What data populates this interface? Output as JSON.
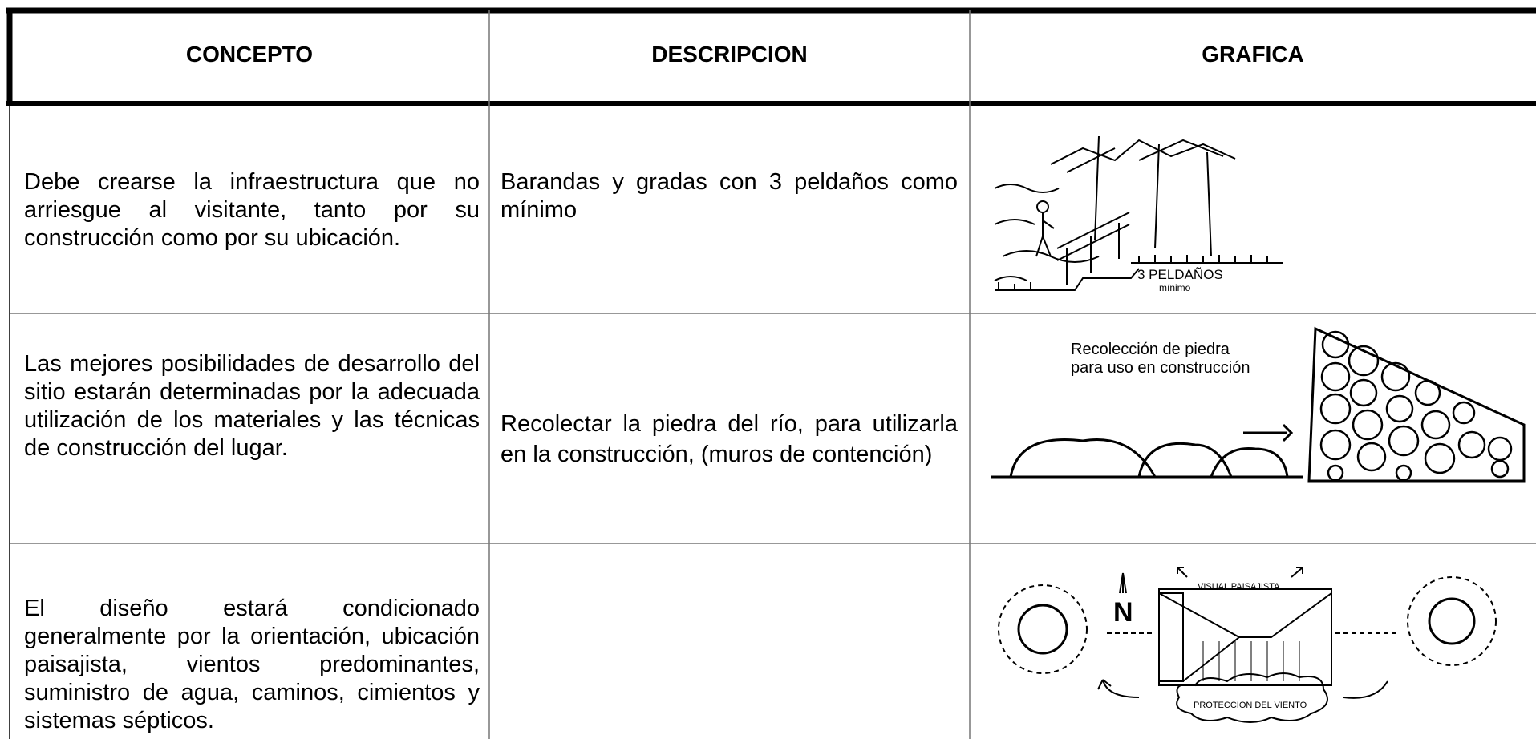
{
  "table": {
    "header": [
      "CONCEPTO",
      "DESCRIPCION",
      "GRAFICA"
    ],
    "rows": [
      {
        "concepto": "Debe crearse la infraestructura que no arriesgue al visitante, tanto por su construcción como por su ubicación.",
        "descripcion": "Barandas y gradas con 3 peldaños como mínimo",
        "grafica": [
          "3 PELDAÑOS",
          "mínimo"
        ]
      },
      {
        "concepto": "Las mejores posibilidades de desarrollo del sitio estarán determinadas por la adecuada utilización de los materiales y las técnicas de construcción del lugar.",
        "descripcion": "Recolectar la piedra del río, para utilizarla en la construcción, (muros de contención)",
        "grafica": [
          "Recolección de piedra",
          "para uso en construcción"
        ]
      },
      {
        "concepto": "El diseño estará condicionado generalmente por la orientación, ubicación paisajista, vientos predominantes, suministro de agua, caminos, cimientos y sistemas sépticos.",
        "grafica": [
          "N",
          "VISUAL PAISAJISTA",
          "PROTECCION DEL VIENTO"
        ]
      }
    ]
  }
}
